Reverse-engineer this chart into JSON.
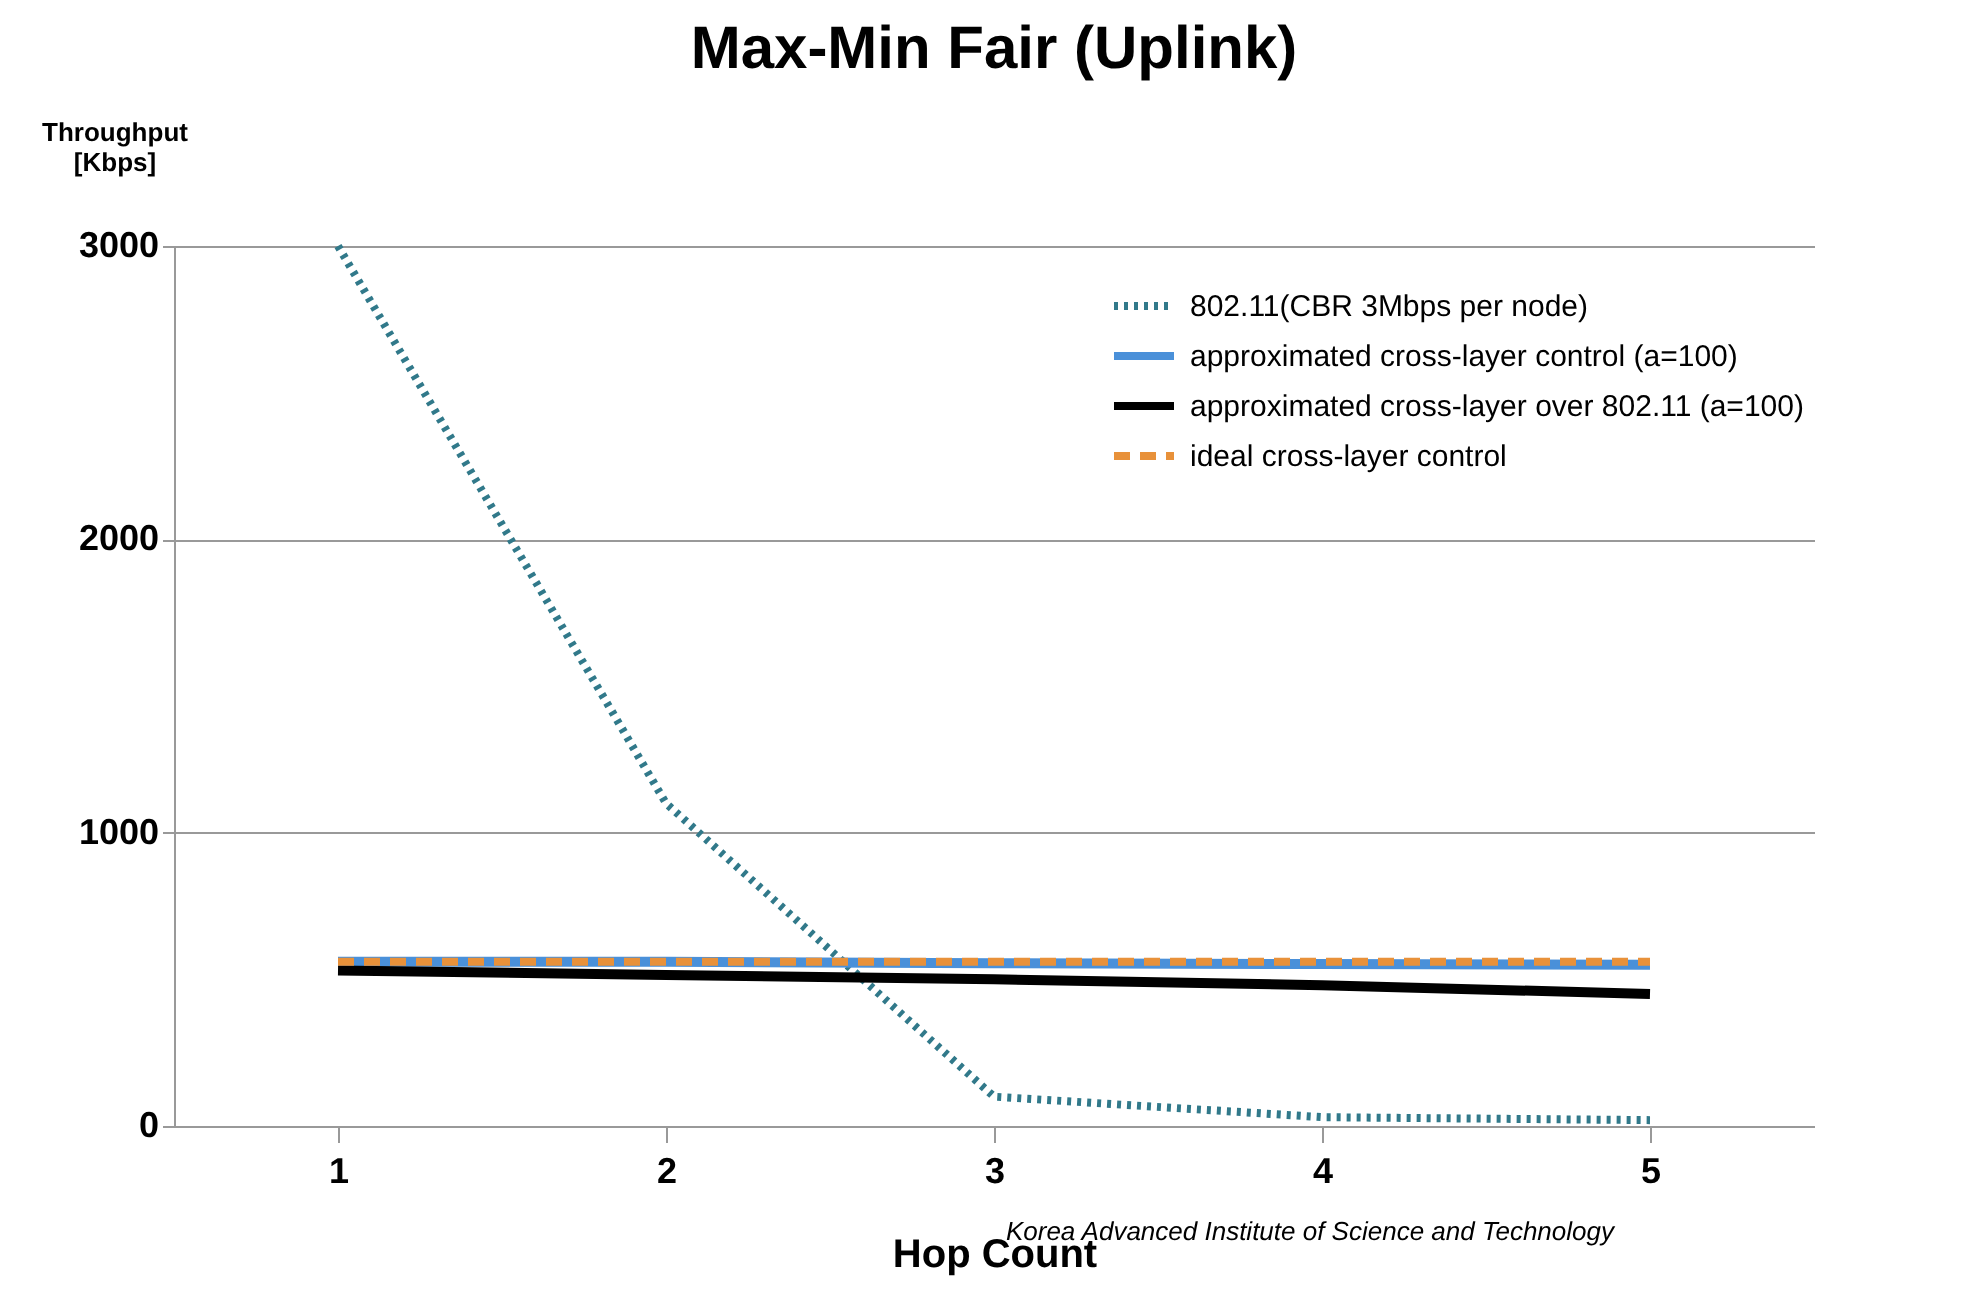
{
  "chart_data": {
    "type": "line",
    "title": "Max-Min Fair (Uplink)",
    "xlabel": "Hop Count",
    "ylabel": "Throughput [Kbps]",
    "categories": [
      "1",
      "2",
      "3",
      "4",
      "5"
    ],
    "series": [
      {
        "name": "802.11(CBR 3Mbps per node)",
        "color": "#31798a",
        "line_style": "dotted",
        "values": [
          3000,
          1100,
          100,
          30,
          20
        ]
      },
      {
        "name": "approximated cross-layer control (a=100)",
        "color": "#4a90d9",
        "line_style": "solid",
        "values": [
          560,
          560,
          555,
          552,
          550
        ]
      },
      {
        "name": "approximated cross-layer over 802.11 (a=100)",
        "color": "#000000",
        "line_style": "solid",
        "values": [
          530,
          515,
          500,
          480,
          450
        ]
      },
      {
        "name": "ideal cross-layer control",
        "color": "#e8913a",
        "line_style": "dashed",
        "values": [
          560,
          560,
          560,
          560,
          560
        ]
      }
    ],
    "ylim": [
      0,
      3000
    ],
    "yticks": [
      0,
      1000,
      2000,
      3000
    ],
    "grid": "y",
    "legend": "top right",
    "marker": "none",
    "annotations": [
      "Korea Advanced Institute of Science and Technology"
    ]
  }
}
